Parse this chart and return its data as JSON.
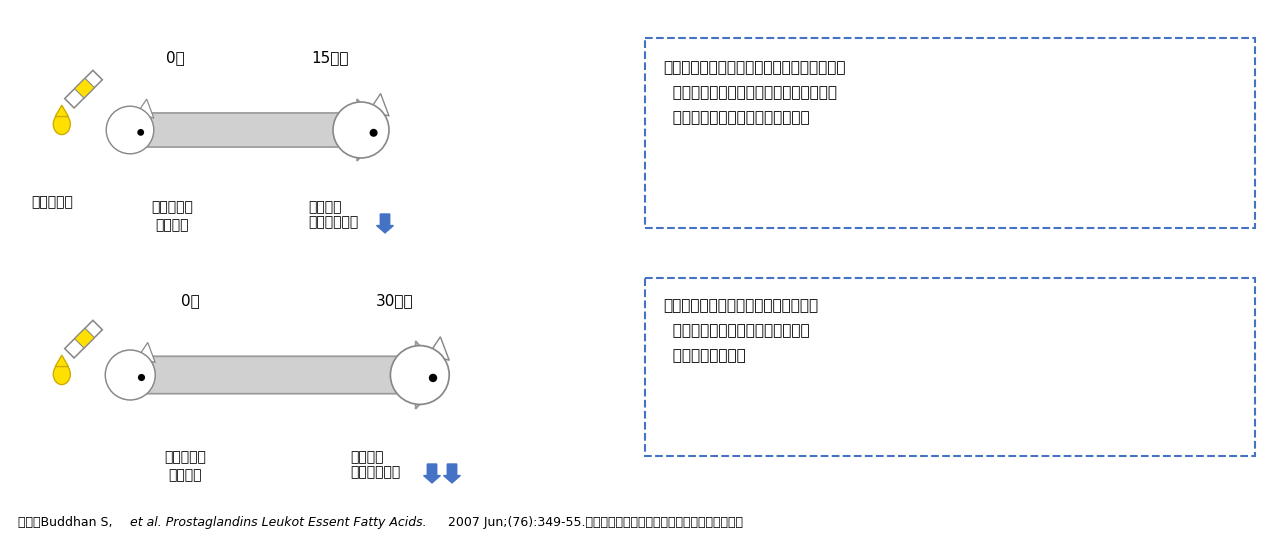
{
  "bg_color": "#ffffff",
  "row1": {
    "day0_label": "0日",
    "day15_label": "15日後",
    "squalene_label": "スクアレン",
    "start_label": "スクアレン\n摂取開始",
    "liver_label1": "肝臓中の",
    "liver_label2": "過酸化脂質量",
    "arrows_down": 1,
    "box_text": "・スクアレンを摂取したラットは、摂取日数\n  の増加に伴い、肝臓中の過酸化脂質量の\n  有意な減少が報告されています。"
  },
  "row2": {
    "day0_label": "0日",
    "day30_label": "30日後",
    "start_label": "スクアレン\n摂取開始",
    "liver_label1": "肝臓中の",
    "liver_label2": "過酸化脂質量",
    "arrows_down": 2,
    "box_text": "・スクアレンは臓器・細胞内の脂質の\n  酸化を防ぐことに寄与することが\n  示唆されました。"
  },
  "citation_normal1": "出典：Buddhan S,  ",
  "citation_italic": "et al. Prostaglandins Leukot Essent Fatty Acids. ",
  "citation_normal2": "2007 Jun;(76):349-55.のデータをもとに学術部にてイメージ図を作成",
  "text_color": "#000000",
  "blue_color": "#4472c4",
  "dashed_box_color": "#4472c4",
  "arrow_color": "#4472c4",
  "yellow_color": "#ffe000",
  "rat_body_color": "#f0f0f0",
  "arrow_gray": "#d0d0d0"
}
